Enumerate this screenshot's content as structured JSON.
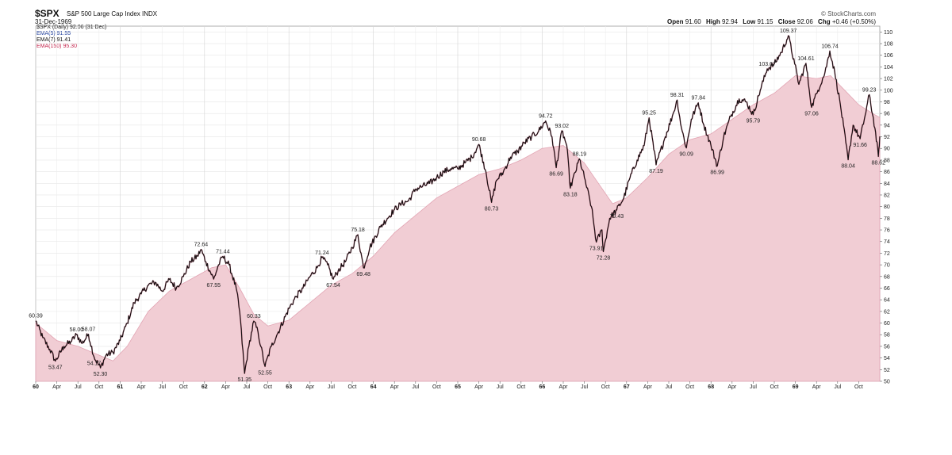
{
  "header": {
    "symbol": "$SPX",
    "description": "S&P 500 Large Cap Index INDX",
    "date": "31-Dec-1969",
    "watermark": "© StockCharts.com",
    "ohlc": {
      "open_label": "Open",
      "open": "91.60",
      "high_label": "High",
      "high": "92.94",
      "low_label": "Low",
      "low": "91.15",
      "close_label": "Close",
      "close": "92.06",
      "chg_label": "Chg",
      "chg": "+0.46 (+0.50%)"
    }
  },
  "legend": {
    "main": "$SPX (Daily) 92.06 (31 Dec)",
    "ema5": "EMA(5) 91.55",
    "ema7": "EMA(7) 91.41",
    "ema150": "EMA(150) 95.30"
  },
  "chart_data": {
    "type": "line",
    "title": "$SPX S&P 500 Large Cap Index INDX",
    "ylim": [
      50,
      111
    ],
    "y_ticks": [
      50,
      52,
      54,
      56,
      58,
      60,
      62,
      64,
      66,
      68,
      70,
      72,
      74,
      76,
      78,
      80,
      82,
      84,
      86,
      88,
      90,
      92,
      94,
      96,
      98,
      100,
      102,
      104,
      106,
      108,
      110
    ],
    "x_range_months": [
      0,
      120
    ],
    "x_ticks": [
      {
        "m": 0,
        "label": "60",
        "bold": true
      },
      {
        "m": 3,
        "label": "Apr"
      },
      {
        "m": 6,
        "label": "Jul"
      },
      {
        "m": 9,
        "label": "Oct"
      },
      {
        "m": 12,
        "label": "61",
        "bold": true
      },
      {
        "m": 15,
        "label": "Apr"
      },
      {
        "m": 18,
        "label": "Jul"
      },
      {
        "m": 21,
        "label": "Oct"
      },
      {
        "m": 24,
        "label": "62",
        "bold": true
      },
      {
        "m": 27,
        "label": "Apr"
      },
      {
        "m": 30,
        "label": "Jul"
      },
      {
        "m": 33,
        "label": "Oct"
      },
      {
        "m": 36,
        "label": "63",
        "bold": true
      },
      {
        "m": 39,
        "label": "Apr"
      },
      {
        "m": 42,
        "label": "Jul"
      },
      {
        "m": 45,
        "label": "Oct"
      },
      {
        "m": 48,
        "label": "64",
        "bold": true
      },
      {
        "m": 51,
        "label": "Apr"
      },
      {
        "m": 54,
        "label": "Jul"
      },
      {
        "m": 57,
        "label": "Oct"
      },
      {
        "m": 60,
        "label": "65",
        "bold": true
      },
      {
        "m": 63,
        "label": "Apr"
      },
      {
        "m": 66,
        "label": "Jul"
      },
      {
        "m": 69,
        "label": "Oct"
      },
      {
        "m": 72,
        "label": "66",
        "bold": true
      },
      {
        "m": 75,
        "label": "Apr"
      },
      {
        "m": 78,
        "label": "Jul"
      },
      {
        "m": 81,
        "label": "Oct"
      },
      {
        "m": 84,
        "label": "67",
        "bold": true
      },
      {
        "m": 87,
        "label": "Apr"
      },
      {
        "m": 90,
        "label": "Jul"
      },
      {
        "m": 93,
        "label": "Oct"
      },
      {
        "m": 96,
        "label": "68",
        "bold": true
      },
      {
        "m": 99,
        "label": "Apr"
      },
      {
        "m": 102,
        "label": "Jul"
      },
      {
        "m": 105,
        "label": "Oct"
      },
      {
        "m": 108,
        "label": "69",
        "bold": true
      },
      {
        "m": 111,
        "label": "Apr"
      },
      {
        "m": 114,
        "label": "Jul"
      },
      {
        "m": 117,
        "label": "Oct"
      }
    ],
    "series": [
      {
        "name": "$SPX (Daily)",
        "color": "#111111",
        "points": [
          [
            0,
            60.39
          ],
          [
            1,
            57.5
          ],
          [
            2,
            55.5
          ],
          [
            2.8,
            53.47
          ],
          [
            4,
            56.0
          ],
          [
            5,
            56.8
          ],
          [
            5.8,
            58.0
          ],
          [
            6.6,
            56.5
          ],
          [
            7.5,
            58.07
          ],
          [
            8.3,
            54.17
          ],
          [
            9.2,
            52.3
          ],
          [
            10,
            54.5
          ],
          [
            11,
            55.0
          ],
          [
            12,
            57.0
          ],
          [
            13,
            60.0
          ],
          [
            14,
            63.5
          ],
          [
            15,
            65.0
          ],
          [
            16,
            66.5
          ],
          [
            17,
            67.0
          ],
          [
            18,
            65.5
          ],
          [
            19,
            67.5
          ],
          [
            20,
            66.0
          ],
          [
            21,
            68.0
          ],
          [
            22,
            70.5
          ],
          [
            23,
            71.5
          ],
          [
            23.5,
            72.64
          ],
          [
            24.2,
            70.5
          ],
          [
            25.3,
            67.55
          ],
          [
            26,
            70.0
          ],
          [
            26.6,
            71.44
          ],
          [
            27.5,
            70.0
          ],
          [
            28.5,
            66.0
          ],
          [
            29,
            62.0
          ],
          [
            29.7,
            51.35
          ],
          [
            30.3,
            56.0
          ],
          [
            31,
            60.33
          ],
          [
            31.6,
            58.5
          ],
          [
            32,
            56.0
          ],
          [
            32.6,
            52.55
          ],
          [
            33.5,
            56.0
          ],
          [
            34.5,
            58.5
          ],
          [
            36,
            62.5
          ],
          [
            37,
            64.5
          ],
          [
            38,
            66.0
          ],
          [
            39,
            68.0
          ],
          [
            40,
            69.5
          ],
          [
            40.7,
            71.24
          ],
          [
            41.5,
            70.0
          ],
          [
            42.3,
            67.54
          ],
          [
            43,
            69.0
          ],
          [
            44,
            70.5
          ],
          [
            45,
            73.0
          ],
          [
            45.8,
            75.18
          ],
          [
            46.6,
            69.48
          ],
          [
            47.5,
            73.0
          ],
          [
            49,
            76.5
          ],
          [
            50,
            78.0
          ],
          [
            51,
            79.5
          ],
          [
            52,
            80.5
          ],
          [
            53,
            81.0
          ],
          [
            54,
            83.0
          ],
          [
            55,
            83.5
          ],
          [
            56,
            84.0
          ],
          [
            57,
            85.0
          ],
          [
            58,
            86.0
          ],
          [
            59,
            86.5
          ],
          [
            60,
            86.5
          ],
          [
            61,
            87.5
          ],
          [
            62,
            88.5
          ],
          [
            63,
            90.68
          ],
          [
            64,
            86.0
          ],
          [
            64.8,
            80.73
          ],
          [
            65.5,
            84.5
          ],
          [
            66.5,
            86.0
          ],
          [
            67.5,
            88.5
          ],
          [
            68.5,
            89.5
          ],
          [
            69.5,
            91.0
          ],
          [
            70.5,
            92.0
          ],
          [
            71.5,
            93.0
          ],
          [
            72.5,
            94.72
          ],
          [
            73.4,
            92.0
          ],
          [
            74.0,
            86.69
          ],
          [
            74.8,
            93.02
          ],
          [
            75.5,
            90.5
          ],
          [
            76,
            83.18
          ],
          [
            77.3,
            88.19
          ],
          [
            78,
            85.0
          ],
          [
            79,
            80.0
          ],
          [
            79.7,
            73.91
          ],
          [
            80.5,
            76.0
          ],
          [
            80.7,
            72.28
          ],
          [
            81.6,
            78.0
          ],
          [
            82.6,
            79.43
          ],
          [
            83.6,
            81.5
          ],
          [
            84.5,
            85.0
          ],
          [
            85.5,
            88.0
          ],
          [
            86.5,
            90.5
          ],
          [
            87.2,
            95.25
          ],
          [
            88.2,
            87.19
          ],
          [
            89.5,
            92.0
          ],
          [
            90.5,
            95.5
          ],
          [
            91.2,
            98.31
          ],
          [
            91.8,
            93.5
          ],
          [
            92.5,
            90.09
          ],
          [
            93.2,
            95.0
          ],
          [
            94.2,
            97.84
          ],
          [
            95,
            94.0
          ],
          [
            96,
            90.5
          ],
          [
            96.9,
            86.99
          ],
          [
            97.8,
            92.0
          ],
          [
            98.8,
            95.5
          ],
          [
            100,
            98.5
          ],
          [
            101,
            98.0
          ],
          [
            102,
            95.79
          ],
          [
            103,
            100.0
          ],
          [
            104,
            103.67
          ],
          [
            105,
            104.5
          ],
          [
            106,
            106.5
          ],
          [
            107,
            109.37
          ],
          [
            107.9,
            104.5
          ],
          [
            108.5,
            101.0
          ],
          [
            109.5,
            104.61
          ],
          [
            110.3,
            97.06
          ],
          [
            111.2,
            100.0
          ],
          [
            112.2,
            103.0
          ],
          [
            112.9,
            106.74
          ],
          [
            113.6,
            103.0
          ],
          [
            114.4,
            97.5
          ],
          [
            115.5,
            88.04
          ],
          [
            116.2,
            94.0
          ],
          [
            117.2,
            91.66
          ],
          [
            117.8,
            95.0
          ],
          [
            118.5,
            99.23
          ],
          [
            119.3,
            93.5
          ],
          [
            119.8,
            88.62
          ],
          [
            120,
            92.06
          ]
        ]
      },
      {
        "name": "EMA(150)",
        "color": "#e8b4c0",
        "points": [
          [
            0,
            60.0
          ],
          [
            3,
            57.0
          ],
          [
            6,
            56.0
          ],
          [
            9,
            54.5
          ],
          [
            11,
            53.5
          ],
          [
            13,
            56.0
          ],
          [
            16,
            62.0
          ],
          [
            19,
            65.5
          ],
          [
            22,
            67.5
          ],
          [
            25,
            69.5
          ],
          [
            27,
            70.0
          ],
          [
            29,
            66.0
          ],
          [
            31,
            61.5
          ],
          [
            33,
            59.5
          ],
          [
            36,
            60.5
          ],
          [
            39,
            63.5
          ],
          [
            42,
            66.5
          ],
          [
            45,
            68.5
          ],
          [
            48,
            71.5
          ],
          [
            51,
            75.5
          ],
          [
            54,
            78.5
          ],
          [
            57,
            81.5
          ],
          [
            60,
            83.5
          ],
          [
            63,
            85.5
          ],
          [
            66,
            86.5
          ],
          [
            69,
            88.0
          ],
          [
            72,
            90.0
          ],
          [
            75,
            90.5
          ],
          [
            78,
            87.5
          ],
          [
            80,
            84.0
          ],
          [
            82,
            80.5
          ],
          [
            84,
            81.5
          ],
          [
            87,
            85.0
          ],
          [
            90,
            89.0
          ],
          [
            93,
            91.5
          ],
          [
            96,
            92.5
          ],
          [
            99,
            95.0
          ],
          [
            102,
            97.5
          ],
          [
            105,
            99.5
          ],
          [
            108,
            102.5
          ],
          [
            111,
            102.0
          ],
          [
            113,
            102.5
          ],
          [
            115,
            100.0
          ],
          [
            117,
            97.5
          ],
          [
            119,
            96.0
          ],
          [
            120,
            95.3
          ]
        ]
      }
    ],
    "annotations": [
      {
        "x": 0,
        "y": 60.39,
        "label": "60.39",
        "pos": "above"
      },
      {
        "x": 2.8,
        "y": 53.47,
        "label": "53.47",
        "pos": "below"
      },
      {
        "x": 5.8,
        "y": 58.0,
        "label": "58.00",
        "pos": "above"
      },
      {
        "x": 7.5,
        "y": 58.07,
        "label": "58.07",
        "pos": "above"
      },
      {
        "x": 8.3,
        "y": 54.17,
        "label": "54.17",
        "pos": "below"
      },
      {
        "x": 9.2,
        "y": 52.3,
        "label": "52.30",
        "pos": "below"
      },
      {
        "x": 23.5,
        "y": 72.64,
        "label": "72.64",
        "pos": "above"
      },
      {
        "x": 25.3,
        "y": 67.55,
        "label": "67.55",
        "pos": "below"
      },
      {
        "x": 26.6,
        "y": 71.44,
        "label": "71.44",
        "pos": "above"
      },
      {
        "x": 29.7,
        "y": 51.35,
        "label": "51.35",
        "pos": "below"
      },
      {
        "x": 31,
        "y": 60.33,
        "label": "60.33",
        "pos": "above"
      },
      {
        "x": 32.6,
        "y": 52.55,
        "label": "52.55",
        "pos": "below"
      },
      {
        "x": 40.7,
        "y": 71.24,
        "label": "71.24",
        "pos": "above"
      },
      {
        "x": 42.3,
        "y": 67.54,
        "label": "67.54",
        "pos": "below"
      },
      {
        "x": 45.8,
        "y": 75.18,
        "label": "75.18",
        "pos": "above"
      },
      {
        "x": 46.6,
        "y": 69.48,
        "label": "69.48",
        "pos": "below"
      },
      {
        "x": 63,
        "y": 90.68,
        "label": "90.68",
        "pos": "above"
      },
      {
        "x": 64.8,
        "y": 80.73,
        "label": "80.73",
        "pos": "below"
      },
      {
        "x": 72.5,
        "y": 94.72,
        "label": "94.72",
        "pos": "above"
      },
      {
        "x": 74.0,
        "y": 86.69,
        "label": "86.69",
        "pos": "below"
      },
      {
        "x": 74.8,
        "y": 93.02,
        "label": "93.02",
        "pos": "above"
      },
      {
        "x": 76,
        "y": 83.18,
        "label": "83.18",
        "pos": "below"
      },
      {
        "x": 77.3,
        "y": 88.19,
        "label": "88.19",
        "pos": "above"
      },
      {
        "x": 79.7,
        "y": 73.91,
        "label": "73.91",
        "pos": "below"
      },
      {
        "x": 80.7,
        "y": 72.28,
        "label": "72.28",
        "pos": "below"
      },
      {
        "x": 82.6,
        "y": 79.43,
        "label": "79.43",
        "pos": "below"
      },
      {
        "x": 87.2,
        "y": 95.25,
        "label": "95.25",
        "pos": "above"
      },
      {
        "x": 88.2,
        "y": 87.19,
        "label": "87.19",
        "pos": "below"
      },
      {
        "x": 91.2,
        "y": 98.31,
        "label": "98.31",
        "pos": "above"
      },
      {
        "x": 92.5,
        "y": 90.09,
        "label": "90.09",
        "pos": "below"
      },
      {
        "x": 94.2,
        "y": 97.84,
        "label": "97.84",
        "pos": "above"
      },
      {
        "x": 96.9,
        "y": 86.99,
        "label": "86.99",
        "pos": "below"
      },
      {
        "x": 102,
        "y": 95.79,
        "label": "95.79",
        "pos": "below"
      },
      {
        "x": 104,
        "y": 103.67,
        "label": "103.67",
        "pos": "above"
      },
      {
        "x": 107,
        "y": 109.37,
        "label": "109.37",
        "pos": "above"
      },
      {
        "x": 109.5,
        "y": 104.61,
        "label": "104.61",
        "pos": "above"
      },
      {
        "x": 110.3,
        "y": 97.06,
        "label": "97.06",
        "pos": "below"
      },
      {
        "x": 112.9,
        "y": 106.74,
        "label": "106.74",
        "pos": "above"
      },
      {
        "x": 115.5,
        "y": 88.04,
        "label": "88.04",
        "pos": "below"
      },
      {
        "x": 117.2,
        "y": 91.66,
        "label": "91.66",
        "pos": "below"
      },
      {
        "x": 118.5,
        "y": 99.23,
        "label": "99.23",
        "pos": "above"
      },
      {
        "x": 119.8,
        "y": 88.62,
        "label": "88.62",
        "pos": "below"
      }
    ],
    "grid": true,
    "area_fill_color": "#f1cdd4",
    "price_color": "#111111",
    "price_accent_color": "#b3143c"
  }
}
